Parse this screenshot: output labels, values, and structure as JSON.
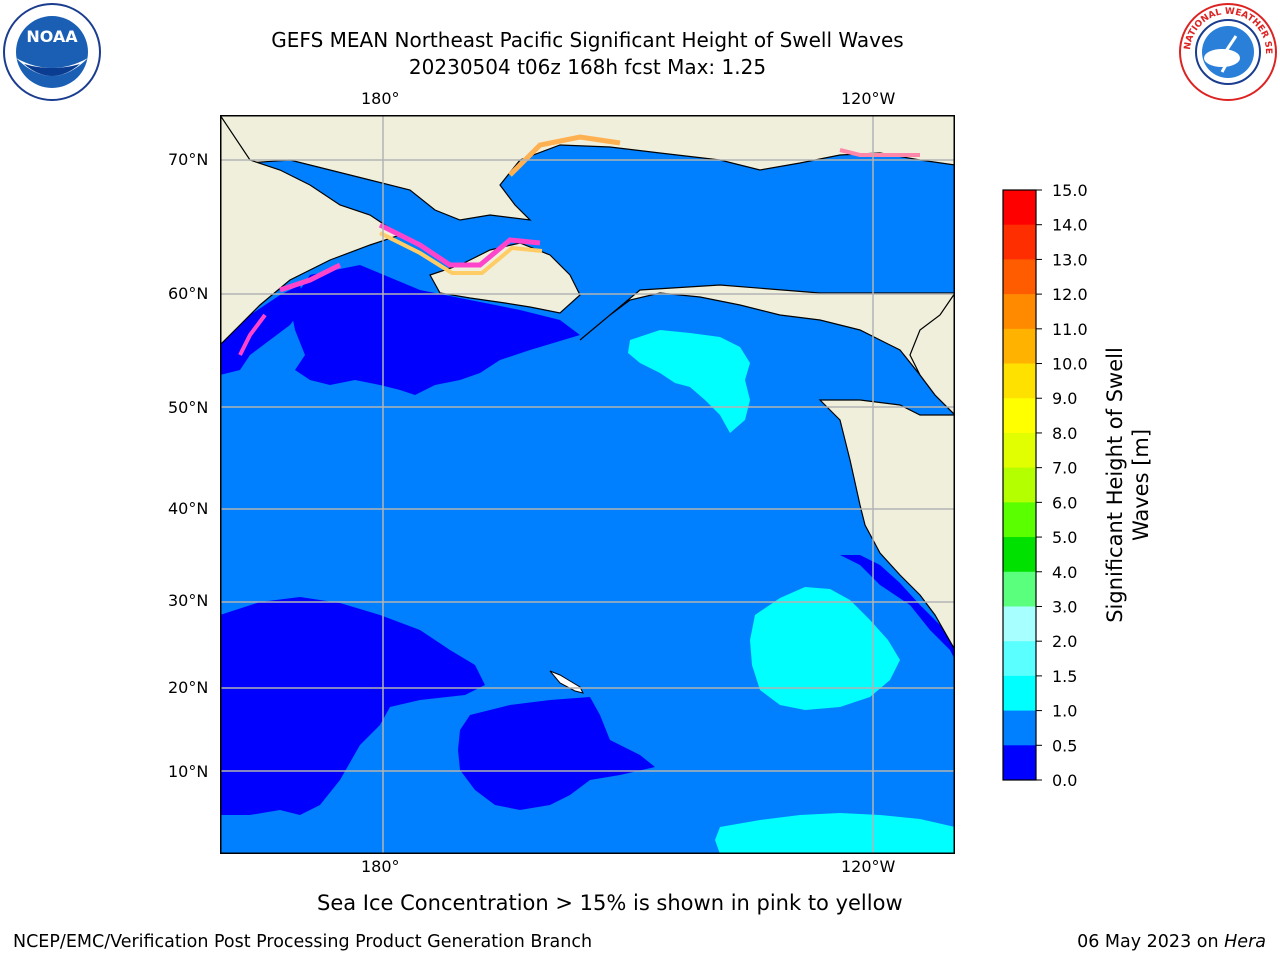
{
  "title": {
    "line1": "GEFS MEAN Northeast Pacific Significant Height of Swell Waves",
    "line2": "20230504 t06z 168h fcst   Max: 1.25"
  },
  "map": {
    "top_lon_labels": [
      "180°",
      "120°W"
    ],
    "bottom_lon_labels": [
      "180°",
      "120°W"
    ],
    "lat_labels": [
      "70°N",
      "60°N",
      "50°N",
      "40°N",
      "30°N",
      "20°N",
      "10°N"
    ],
    "colors": {
      "ocean": "#0080ff",
      "low_swell": "#0000ff",
      "high_swell": "#00ffff",
      "land": "#efefdc",
      "grid": "#b3b3b3"
    },
    "ice_note": "Sea Ice Concentration > 15% is shown in pink to yellow"
  },
  "colorbar": {
    "label_line1": "Significant Height of Swell",
    "label_line2": "Waves [m]",
    "ticks": [
      "15.0",
      "14.0",
      "13.0",
      "12.0",
      "11.0",
      "10.0",
      "9.0",
      "8.0",
      "7.0",
      "6.0",
      "5.0",
      "4.0",
      "3.0",
      "2.0",
      "1.5",
      "1.0",
      "0.5",
      "0.0"
    ],
    "colors_top_to_bottom": [
      "#ff0000",
      "#ff2e00",
      "#ff5c00",
      "#ff8a00",
      "#ffb300",
      "#ffe100",
      "#ffff00",
      "#e1ff00",
      "#b4ff00",
      "#5aff00",
      "#00e100",
      "#5aff7e",
      "#a8ffff",
      "#5affff",
      "#00ffff",
      "#0080ff",
      "#0000ff"
    ]
  },
  "logos": {
    "noaa_text": "NOAA",
    "nws_text": "NATIONAL WEATHER SERVICE"
  },
  "footer": {
    "left": "NCEP/EMC/Verification Post Processing Product Generation Branch",
    "right_date": "06 May 2023 on ",
    "right_host": "Hera"
  }
}
